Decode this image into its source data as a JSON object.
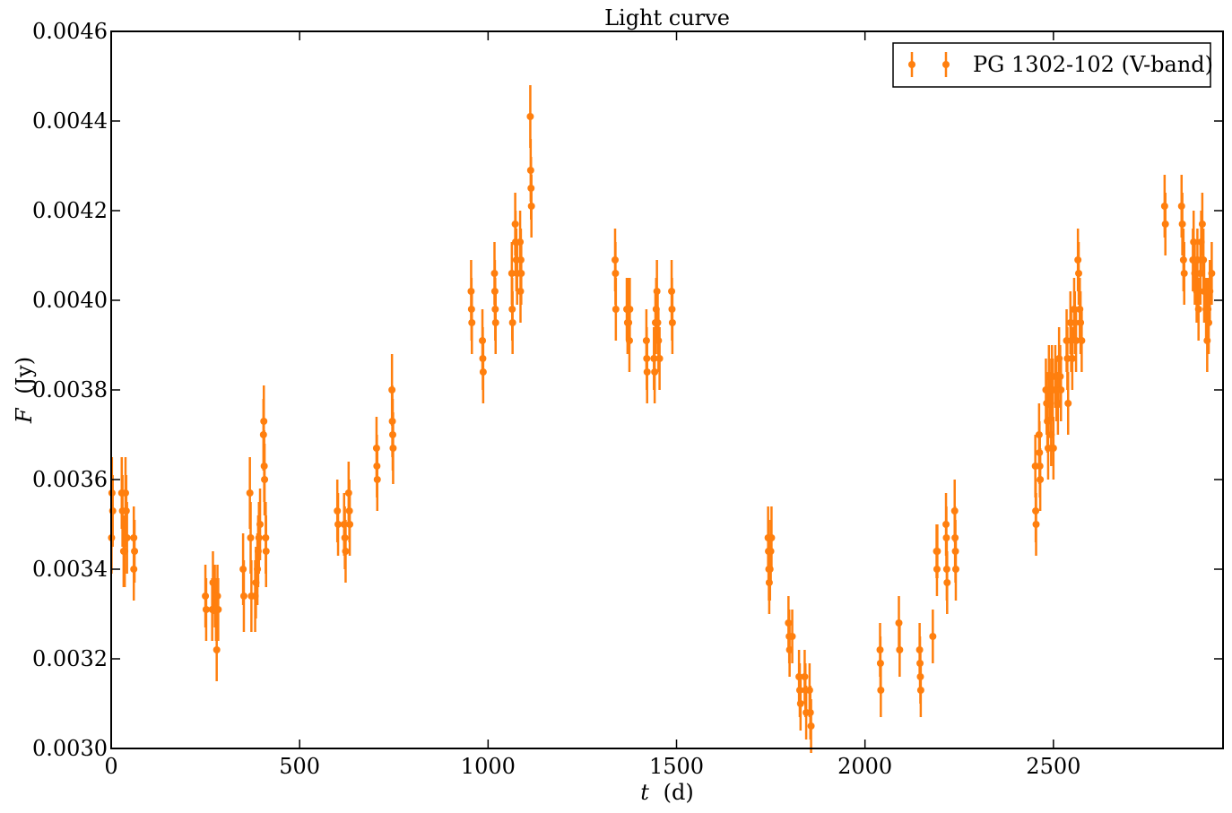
{
  "chart_data": {
    "type": "scatter",
    "title": "Light curve",
    "xlabel_var": "t",
    "xlabel_unit": "(d)",
    "ylabel_var": "F",
    "ylabel_unit": "(Jy)",
    "xlim": [
      0,
      2950
    ],
    "ylim": [
      0.003,
      0.0046
    ],
    "xticks": [
      0,
      500,
      1000,
      1500,
      2000,
      2500
    ],
    "xtick_labels": [
      "0",
      "500",
      "1000",
      "1500",
      "2000",
      "2500"
    ],
    "yticks": [
      0.003,
      0.0032,
      0.0034,
      0.0036,
      0.0038,
      0.004,
      0.0042,
      0.0044,
      0.0046
    ],
    "ytick_labels": [
      "0.0030",
      "0.0032",
      "0.0034",
      "0.0036",
      "0.0038",
      "0.0040",
      "0.0042",
      "0.0044",
      "0.0046"
    ],
    "grid": false,
    "legend_position": "top-right",
    "color": "#ff7f0e",
    "series": [
      {
        "name": "PG 1302-102 (V-band)",
        "points": [
          [
            2,
            0.00357,
            8e-05
          ],
          [
            4,
            0.00353,
            8e-05
          ],
          [
            1,
            0.00347,
            8e-05
          ],
          [
            28,
            0.00357,
            8e-05
          ],
          [
            30,
            0.00353,
            8e-05
          ],
          [
            33,
            0.00344,
            8e-05
          ],
          [
            38,
            0.00357,
            8e-05
          ],
          [
            40,
            0.00353,
            8e-05
          ],
          [
            42,
            0.00347,
            8e-05
          ],
          [
            36,
            0.00344,
            8e-05
          ],
          [
            60,
            0.00347,
            7e-05
          ],
          [
            62,
            0.00344,
            7e-05
          ],
          [
            60,
            0.0034,
            7e-05
          ],
          [
            250,
            0.00334,
            7e-05
          ],
          [
            252,
            0.00331,
            7e-05
          ],
          [
            268,
            0.00331,
            7e-05
          ],
          [
            270,
            0.00337,
            7e-05
          ],
          [
            275,
            0.00334,
            7e-05
          ],
          [
            278,
            0.00331,
            7e-05
          ],
          [
            282,
            0.00334,
            7e-05
          ],
          [
            284,
            0.00331,
            7e-05
          ],
          [
            280,
            0.00322,
            7e-05
          ],
          [
            350,
            0.0034,
            8e-05
          ],
          [
            352,
            0.00334,
            8e-05
          ],
          [
            368,
            0.00357,
            8e-05
          ],
          [
            370,
            0.00347,
            8e-05
          ],
          [
            372,
            0.00334,
            8e-05
          ],
          [
            382,
            0.00334,
            8e-05
          ],
          [
            384,
            0.00337,
            8e-05
          ],
          [
            388,
            0.0034,
            8e-05
          ],
          [
            390,
            0.00344,
            8e-05
          ],
          [
            392,
            0.00347,
            8e-05
          ],
          [
            395,
            0.0035,
            8e-05
          ],
          [
            405,
            0.00373,
            8e-05
          ],
          [
            404,
            0.0037,
            8e-05
          ],
          [
            406,
            0.00363,
            8e-05
          ],
          [
            407,
            0.0036,
            8e-05
          ],
          [
            410,
            0.00347,
            8e-05
          ],
          [
            411,
            0.00344,
            8e-05
          ],
          [
            600,
            0.00353,
            7e-05
          ],
          [
            602,
            0.0035,
            7e-05
          ],
          [
            618,
            0.0035,
            7e-05
          ],
          [
            620,
            0.00347,
            7e-05
          ],
          [
            622,
            0.00344,
            7e-05
          ],
          [
            630,
            0.00357,
            7e-05
          ],
          [
            632,
            0.00353,
            7e-05
          ],
          [
            633,
            0.0035,
            7e-05
          ],
          [
            704,
            0.00367,
            7e-05
          ],
          [
            705,
            0.00363,
            7e-05
          ],
          [
            706,
            0.0036,
            7e-05
          ],
          [
            745,
            0.0038,
            8e-05
          ],
          [
            746,
            0.00373,
            8e-05
          ],
          [
            747,
            0.0037,
            8e-05
          ],
          [
            748,
            0.00367,
            8e-05
          ],
          [
            955,
            0.00402,
            7e-05
          ],
          [
            956,
            0.00398,
            7e-05
          ],
          [
            957,
            0.00395,
            7e-05
          ],
          [
            985,
            0.00391,
            7e-05
          ],
          [
            986,
            0.00387,
            7e-05
          ],
          [
            987,
            0.00384,
            7e-05
          ],
          [
            1017,
            0.00406,
            7e-05
          ],
          [
            1018,
            0.00402,
            7e-05
          ],
          [
            1019,
            0.00398,
            7e-05
          ],
          [
            1020,
            0.00395,
            7e-05
          ],
          [
            1063,
            0.00406,
            7e-05
          ],
          [
            1064,
            0.00398,
            7e-05
          ],
          [
            1065,
            0.00395,
            7e-05
          ],
          [
            1072,
            0.00417,
            7e-05
          ],
          [
            1073,
            0.00413,
            7e-05
          ],
          [
            1075,
            0.00409,
            7e-05
          ],
          [
            1077,
            0.00406,
            7e-05
          ],
          [
            1085,
            0.00413,
            7e-05
          ],
          [
            1087,
            0.00409,
            7e-05
          ],
          [
            1088,
            0.00406,
            7e-05
          ],
          [
            1086,
            0.00402,
            7e-05
          ],
          [
            1112,
            0.00441,
            7e-05
          ],
          [
            1113,
            0.00429,
            7e-05
          ],
          [
            1114,
            0.00425,
            7e-05
          ],
          [
            1115,
            0.00421,
            7e-05
          ],
          [
            1337,
            0.00409,
            7e-05
          ],
          [
            1338,
            0.00406,
            7e-05
          ],
          [
            1339,
            0.00398,
            7e-05
          ],
          [
            1368,
            0.00398,
            7e-05
          ],
          [
            1370,
            0.00395,
            7e-05
          ],
          [
            1372,
            0.00398,
            7e-05
          ],
          [
            1373,
            0.00395,
            7e-05
          ],
          [
            1375,
            0.00391,
            7e-05
          ],
          [
            1376,
            0.00398,
            7e-05
          ],
          [
            1420,
            0.00391,
            7e-05
          ],
          [
            1421,
            0.00387,
            7e-05
          ],
          [
            1422,
            0.00384,
            7e-05
          ],
          [
            1440,
            0.00387,
            7e-05
          ],
          [
            1442,
            0.00384,
            7e-05
          ],
          [
            1444,
            0.00395,
            7e-05
          ],
          [
            1446,
            0.00398,
            7e-05
          ],
          [
            1448,
            0.00402,
            7e-05
          ],
          [
            1450,
            0.00395,
            7e-05
          ],
          [
            1452,
            0.00391,
            7e-05
          ],
          [
            1455,
            0.00387,
            7e-05
          ],
          [
            1487,
            0.00402,
            7e-05
          ],
          [
            1488,
            0.00398,
            7e-05
          ],
          [
            1489,
            0.00395,
            7e-05
          ],
          [
            1743,
            0.00347,
            7e-05
          ],
          [
            1744,
            0.00344,
            7e-05
          ],
          [
            1745,
            0.0034,
            7e-05
          ],
          [
            1746,
            0.00337,
            7e-05
          ],
          [
            1748,
            0.0034,
            7e-05
          ],
          [
            1750,
            0.00344,
            7e-05
          ],
          [
            1752,
            0.00347,
            7e-05
          ],
          [
            1797,
            0.00328,
            6e-05
          ],
          [
            1799,
            0.00325,
            6e-05
          ],
          [
            1800,
            0.00322,
            6e-05
          ],
          [
            1807,
            0.00325,
            6e-05
          ],
          [
            1825,
            0.00316,
            6e-05
          ],
          [
            1827,
            0.00313,
            6e-05
          ],
          [
            1829,
            0.0031,
            6e-05
          ],
          [
            1840,
            0.00316,
            6e-05
          ],
          [
            1842,
            0.00313,
            6e-05
          ],
          [
            1844,
            0.00308,
            6e-05
          ],
          [
            1853,
            0.00313,
            6e-05
          ],
          [
            1855,
            0.00308,
            6e-05
          ],
          [
            1857,
            0.00305,
            6e-05
          ],
          [
            2040,
            0.00322,
            6e-05
          ],
          [
            2041,
            0.00319,
            6e-05
          ],
          [
            2042,
            0.00313,
            6e-05
          ],
          [
            2090,
            0.00328,
            6e-05
          ],
          [
            2092,
            0.00322,
            6e-05
          ],
          [
            2145,
            0.00322,
            6e-05
          ],
          [
            2146,
            0.00319,
            6e-05
          ],
          [
            2147,
            0.00316,
            6e-05
          ],
          [
            2148,
            0.00313,
            6e-05
          ],
          [
            2180,
            0.00325,
            6e-05
          ],
          [
            2190,
            0.00344,
            6e-05
          ],
          [
            2191,
            0.0034,
            6e-05
          ],
          [
            2192,
            0.00344,
            6e-05
          ],
          [
            2215,
            0.0035,
            7e-05
          ],
          [
            2216,
            0.00347,
            7e-05
          ],
          [
            2217,
            0.0034,
            7e-05
          ],
          [
            2218,
            0.00337,
            7e-05
          ],
          [
            2238,
            0.00353,
            7e-05
          ],
          [
            2239,
            0.00347,
            7e-05
          ],
          [
            2240,
            0.00344,
            7e-05
          ],
          [
            2241,
            0.0034,
            7e-05
          ],
          [
            2452,
            0.00363,
            7e-05
          ],
          [
            2453,
            0.00353,
            7e-05
          ],
          [
            2454,
            0.0035,
            7e-05
          ],
          [
            2462,
            0.0037,
            7e-05
          ],
          [
            2463,
            0.00366,
            7e-05
          ],
          [
            2464,
            0.00363,
            7e-05
          ],
          [
            2465,
            0.0036,
            7e-05
          ],
          [
            2480,
            0.0038,
            7e-05
          ],
          [
            2482,
            0.00377,
            7e-05
          ],
          [
            2484,
            0.00373,
            7e-05
          ],
          [
            2486,
            0.00367,
            7e-05
          ],
          [
            2488,
            0.00383,
            7e-05
          ],
          [
            2490,
            0.0038,
            7e-05
          ],
          [
            2492,
            0.00377,
            7e-05
          ],
          [
            2494,
            0.0037,
            7e-05
          ],
          [
            2496,
            0.00383,
            7e-05
          ],
          [
            2498,
            0.0038,
            7e-05
          ],
          [
            2500,
            0.00367,
            7e-05
          ],
          [
            2505,
            0.00383,
            7e-05
          ],
          [
            2508,
            0.0038,
            7e-05
          ],
          [
            2512,
            0.00377,
            7e-05
          ],
          [
            2515,
            0.00387,
            7e-05
          ],
          [
            2518,
            0.00383,
            7e-05
          ],
          [
            2520,
            0.0038,
            7e-05
          ],
          [
            2535,
            0.00391,
            7e-05
          ],
          [
            2537,
            0.00387,
            7e-05
          ],
          [
            2539,
            0.00377,
            7e-05
          ],
          [
            2545,
            0.00395,
            7e-05
          ],
          [
            2547,
            0.00391,
            7e-05
          ],
          [
            2550,
            0.00387,
            7e-05
          ],
          [
            2555,
            0.00398,
            7e-05
          ],
          [
            2557,
            0.00395,
            7e-05
          ],
          [
            2560,
            0.00391,
            7e-05
          ],
          [
            2565,
            0.00409,
            7e-05
          ],
          [
            2567,
            0.00406,
            7e-05
          ],
          [
            2570,
            0.00398,
            7e-05
          ],
          [
            2572,
            0.00395,
            7e-05
          ],
          [
            2575,
            0.00391,
            7e-05
          ],
          [
            2795,
            0.00421,
            7e-05
          ],
          [
            2797,
            0.00417,
            7e-05
          ],
          [
            2840,
            0.00421,
            7e-05
          ],
          [
            2842,
            0.00417,
            7e-05
          ],
          [
            2845,
            0.00409,
            7e-05
          ],
          [
            2847,
            0.00406,
            7e-05
          ],
          [
            2870,
            0.00409,
            7e-05
          ],
          [
            2872,
            0.00413,
            7e-05
          ],
          [
            2875,
            0.00406,
            7e-05
          ],
          [
            2880,
            0.00402,
            7e-05
          ],
          [
            2882,
            0.00409,
            7e-05
          ],
          [
            2885,
            0.00398,
            7e-05
          ],
          [
            2890,
            0.00406,
            7e-05
          ],
          [
            2892,
            0.00413,
            7e-05
          ],
          [
            2895,
            0.00417,
            7e-05
          ],
          [
            2898,
            0.00409,
            7e-05
          ],
          [
            2900,
            0.00402,
            7e-05
          ],
          [
            2905,
            0.00398,
            7e-05
          ],
          [
            2908,
            0.00391,
            7e-05
          ],
          [
            2910,
            0.00398,
            7e-05
          ],
          [
            2912,
            0.00395,
            7e-05
          ],
          [
            2915,
            0.00402,
            7e-05
          ],
          [
            2920,
            0.00406,
            7e-05
          ]
        ]
      }
    ]
  }
}
